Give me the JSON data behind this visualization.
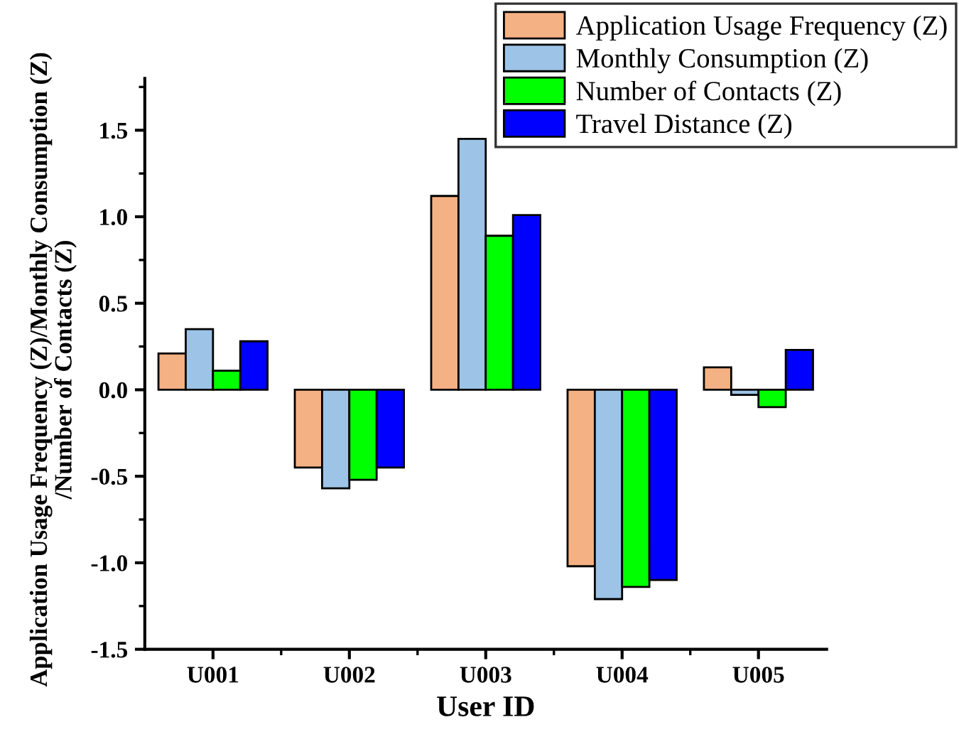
{
  "chart_data": {
    "type": "bar",
    "xlabel": "User ID",
    "ylabel": "Application Usage Frequency (Z)/Monthly Consumption (Z)\n/Number of Contacts (Z)",
    "categories": [
      "U001",
      "U002",
      "U003",
      "U004",
      "U005"
    ],
    "series": [
      {
        "name": "Application Usage Frequency (Z)",
        "color": "#f4b183",
        "values": [
          0.21,
          -0.45,
          1.12,
          -1.02,
          0.13
        ]
      },
      {
        "name": "Monthly Consumption (Z)",
        "color": "#9dc3e6",
        "values": [
          0.35,
          -0.57,
          1.45,
          -1.21,
          -0.03
        ]
      },
      {
        "name": "Number of Contacts (Z)",
        "color": "#00ff00",
        "values": [
          0.11,
          -0.52,
          0.89,
          -1.14,
          -0.1
        ]
      },
      {
        "name": "Travel Distance (Z)",
        "color": "#0000ff",
        "values": [
          0.28,
          -0.45,
          1.01,
          -1.1,
          0.23
        ]
      }
    ],
    "ylim": [
      -1.5,
      1.8
    ],
    "yticks": [
      {
        "value": -1.5,
        "label": "-1.5"
      },
      {
        "value": -1.0,
        "label": "-1.0"
      },
      {
        "value": -0.5,
        "label": "-0.5"
      },
      {
        "value": 0.0,
        "label": "0.0"
      },
      {
        "value": 0.5,
        "label": "0.5"
      },
      {
        "value": 1.0,
        "label": "1.0"
      },
      {
        "value": 1.5,
        "label": "1.5"
      }
    ],
    "grid": false,
    "legend": "top right"
  }
}
